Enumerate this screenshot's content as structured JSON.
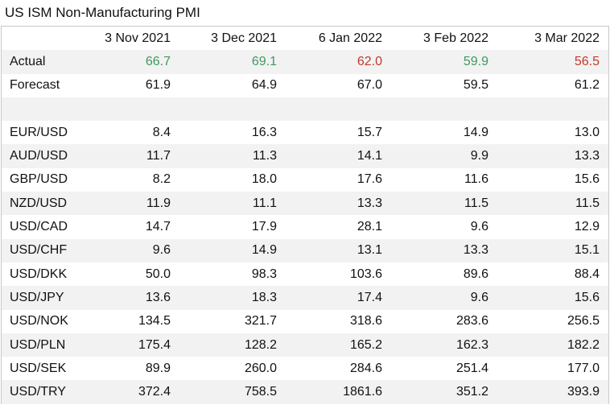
{
  "title": "US ISM Non-Manufacturing PMI",
  "columns": [
    "3 Nov 2021",
    "3 Dec 2021",
    "6 Jan 2022",
    "3 Feb 2022",
    "3 Mar 2022"
  ],
  "colors": {
    "positive": "#3c9a5f",
    "negative": "#c0392b",
    "shade": "#f2f2f2"
  },
  "actual": {
    "label": "Actual",
    "values": [
      {
        "v": "66.7",
        "s": "pos"
      },
      {
        "v": "69.1",
        "s": "pos"
      },
      {
        "v": "62.0",
        "s": "neg"
      },
      {
        "v": "59.9",
        "s": "pos"
      },
      {
        "v": "56.5",
        "s": "neg"
      }
    ]
  },
  "forecast": {
    "label": "Forecast",
    "values": [
      "61.9",
      "64.9",
      "67.0",
      "59.5",
      "61.2"
    ]
  },
  "pairs": [
    {
      "label": "EUR/USD",
      "values": [
        "8.4",
        "16.3",
        "15.7",
        "14.9",
        "13.0"
      ]
    },
    {
      "label": "AUD/USD",
      "values": [
        "11.7",
        "11.3",
        "14.1",
        "9.9",
        "13.3"
      ]
    },
    {
      "label": "GBP/USD",
      "values": [
        "8.2",
        "18.0",
        "17.6",
        "11.6",
        "15.6"
      ]
    },
    {
      "label": "NZD/USD",
      "values": [
        "11.9",
        "11.1",
        "13.3",
        "11.5",
        "11.5"
      ]
    },
    {
      "label": "USD/CAD",
      "values": [
        "14.7",
        "17.9",
        "28.1",
        "9.6",
        "12.9"
      ]
    },
    {
      "label": "USD/CHF",
      "values": [
        "9.6",
        "14.9",
        "13.1",
        "13.3",
        "15.1"
      ]
    },
    {
      "label": "USD/DKK",
      "values": [
        "50.0",
        "98.3",
        "103.6",
        "89.6",
        "88.4"
      ]
    },
    {
      "label": "USD/JPY",
      "values": [
        "13.6",
        "18.3",
        "17.4",
        "9.6",
        "15.6"
      ]
    },
    {
      "label": "USD/NOK",
      "values": [
        "134.5",
        "321.7",
        "318.6",
        "283.6",
        "256.5"
      ]
    },
    {
      "label": "USD/PLN",
      "values": [
        "175.4",
        "128.2",
        "165.2",
        "162.3",
        "182.2"
      ]
    },
    {
      "label": "USD/SEK",
      "values": [
        "89.9",
        "260.0",
        "284.6",
        "251.4",
        "177.0"
      ]
    },
    {
      "label": "USD/TRY",
      "values": [
        "372.4",
        "758.5",
        "1861.6",
        "351.2",
        "393.9"
      ]
    }
  ]
}
